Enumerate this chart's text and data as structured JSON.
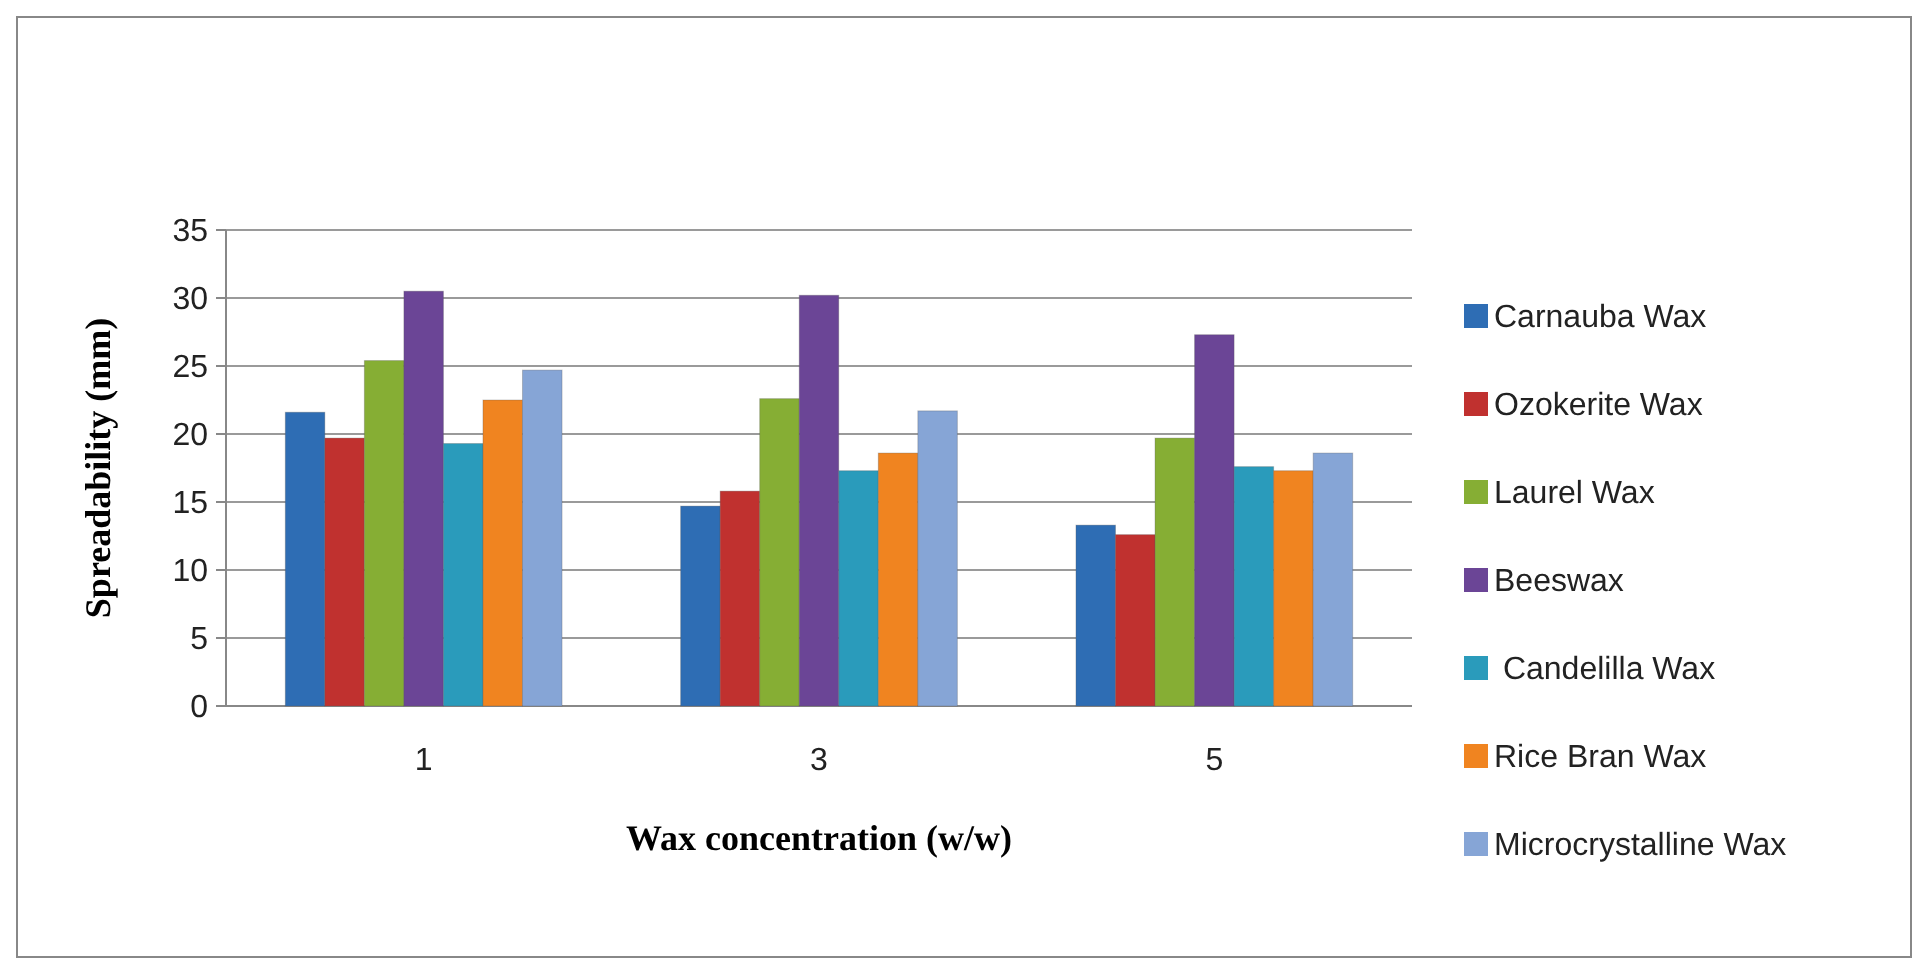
{
  "chart_data": {
    "type": "bar",
    "xlabel": "Wax concentration (w/w)",
    "ylabel": "Spreadability  (mm)",
    "categories": [
      "1",
      "3",
      "5"
    ],
    "series": [
      {
        "name": "Carnauba Wax",
        "color": "#2e6db4",
        "values": [
          21.6,
          14.7,
          13.3
        ]
      },
      {
        "name": "Ozokerite Wax",
        "color": "#c0312f",
        "values": [
          19.7,
          15.8,
          12.6
        ]
      },
      {
        "name": "Laurel Wax",
        "color": "#86ae34",
        "values": [
          25.4,
          22.6,
          19.7
        ]
      },
      {
        "name": "Beeswax",
        "color": "#6b4596",
        "values": [
          30.5,
          30.2,
          27.3
        ]
      },
      {
        "name": " Candelilla Wax",
        "color": "#2a9bbb",
        "values": [
          19.3,
          17.3,
          17.6
        ]
      },
      {
        "name": "Rice Bran Wax",
        "color": "#f08420",
        "values": [
          22.5,
          18.6,
          17.3
        ]
      },
      {
        "name": "Microcrystalline Wax",
        "color": "#86a5d6",
        "values": [
          24.7,
          21.7,
          18.6
        ]
      }
    ],
    "ylim": [
      0,
      35
    ],
    "yticks": [
      0,
      5,
      10,
      15,
      20,
      25,
      30,
      35
    ],
    "grid": "y",
    "legend": "right"
  }
}
